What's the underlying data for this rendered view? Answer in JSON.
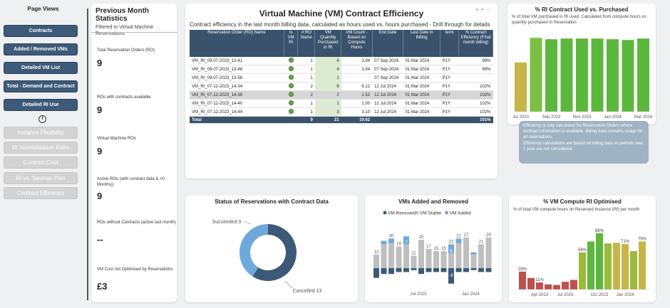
{
  "nav": {
    "title": "Page Views",
    "buttons": [
      "Contracts",
      "Added / Removed VMs",
      "Detailed VM List",
      "Total - Demand and Contract",
      "Detailed RI Use"
    ],
    "disabled_buttons": [
      "Instance Flexibility",
      "RI Normalisation Ratio",
      "Contract Cost",
      "RI vs. Savings Plan",
      "Contract Efficiency"
    ],
    "info_icon": "i"
  },
  "stats": {
    "title": "Previous Month Statistics",
    "subtitle": "Filtered to Virtual Machine Reservations",
    "items": [
      {
        "label": "Total Reservation Orders (RO)",
        "value": "9"
      },
      {
        "label": "ROs with contracts available",
        "value": "9"
      },
      {
        "label": "Virtual Machine ROs",
        "value": "9"
      },
      {
        "label": "Active ROs (with contract data & >0 Months))",
        "value": "9"
      },
      {
        "label": "ROs without Contracts (active last month)",
        "value": "--"
      },
      {
        "label": "VM Cost not Optimised by Reservations",
        "value": "£3"
      }
    ]
  },
  "table": {
    "title": "Virtual Machine (VM) Contract Efficiency",
    "subtitle": "Contract efficiency in the last month billing data, calculated as hours used vs. hours purchased - Drill through for details",
    "headers": [
      "Reservation Order (RO) Name",
      "Is VM RI",
      "# RO Name",
      "VM Quantity Purchased in RI",
      "VM Count - Based on Compute Hours",
      "End Date",
      "Last Date in Billing",
      "term",
      "% Contract Efficiency (Final month billing)"
    ],
    "rows": [
      [
        "VM_RI_09-07-2023_13-41",
        "",
        "1",
        "4",
        "3.94",
        "07 Sep 2024",
        "01 Mar 2024",
        "P1Y",
        "99%"
      ],
      [
        "VM_RI_09-07-2023_13-48",
        "",
        "1",
        "4",
        "3.94",
        "07 Sep 2024",
        "01 Mar 2024",
        "P1Y",
        "99%"
      ],
      [
        "VM_RI_09-07-2023_13-58",
        "",
        "1",
        "1",
        "",
        "07 Sep 2024",
        "01 Mar 2024",
        "P1Y",
        ""
      ],
      [
        "VM_RI_07-12-2023_14-34",
        "",
        "2",
        "6",
        "6.12",
        "12 Jul 2024",
        "01 Mar 2024",
        "P1Y",
        "102%"
      ],
      [
        "VM_RI_07-12-2023_14-39",
        "",
        "2",
        "2",
        "1.52",
        "12 Jul 2024",
        "01 Mar 2024",
        "P1Y",
        "102%"
      ],
      [
        "VM_RI_07-12-2023_14-40",
        "",
        "1",
        "1",
        "1.00",
        "12 Jul 2024",
        "01 Mar 2024",
        "P1Y",
        "102%"
      ],
      [
        "VM_RI_07-12-2023_14-44",
        "",
        "1",
        "3",
        "3.10",
        "12 Jul 2024",
        "01 Mar 2024",
        "P1Y",
        "102%"
      ]
    ],
    "total": [
      "Total",
      "",
      "9",
      "21",
      "19.62",
      "",
      "",
      "",
      "101%"
    ]
  },
  "ri_used": {
    "title": "% RI Contract Used vs. Purchased",
    "subtitle": "% of total VM purchased in RI used. Calculated from compute hours vs. quantity purchased in Reservation",
    "tooltip": [
      "Efficiency is only calculated for Reservation Orders where contract information is available. Billing data contains usage for all reservations.",
      "Efficiency calculations are based on billing data so periods over 1 year are not considered."
    ]
  },
  "donut": {
    "title": "Status of Reservations with Contract Data",
    "label_succeeded": "Succeeded 9",
    "label_cancelled": "Cancelled 13"
  },
  "vms": {
    "title": "VMs Added and Removed",
    "legend": [
      "VM Removed",
      "VM Stable",
      "VM Added"
    ]
  },
  "optimised": {
    "title": "% VM Compute RI Optimised",
    "subtitle": "% of total VM compute hours on Reserved Instance (RI) per month"
  },
  "chart_data": [
    {
      "type": "bar",
      "title": "% RI Contract Used vs. Purchased",
      "categories": [
        "Jul 2023",
        "Aug 2023",
        "Sep 2023",
        "Oct 2023",
        "Nov 2023",
        "Dec 2023",
        "Jan 2024",
        "Feb 2024",
        "Mar 2024"
      ],
      "x_ticks": [
        "Jul 2023",
        "Sep 2023",
        "Nov 2023",
        "Jan 2024",
        "Mar 2024"
      ],
      "values": [
        68,
        102,
        100,
        101,
        101,
        101,
        100,
        99,
        101
      ],
      "colors": [
        "#c7b54a",
        "#7bc043",
        "#5cb83c",
        "#5cb83c",
        "#5cb83c",
        "#5cb83c",
        "#5cb83c",
        "#5cb83c",
        "#5cb83c"
      ]
    },
    {
      "type": "pie",
      "title": "Status of Reservations with Contract Data",
      "categories": [
        "Succeeded",
        "Cancelled"
      ],
      "values": [
        9,
        13
      ],
      "colors": [
        "#6fa8dc",
        "#3c5a78"
      ]
    },
    {
      "type": "bar",
      "title": "VMs Added and Removed",
      "x_ticks": [
        "Jul 2023",
        "Jan 2024"
      ],
      "series": [
        {
          "name": "VM Stable",
          "values": [
            12,
            21,
            22,
            19,
            21,
            11,
            25,
            17,
            15,
            15,
            13,
            22,
            27,
            12,
            21,
            27
          ]
        },
        {
          "name": "VM Added",
          "values": [
            0,
            3,
            4,
            0,
            7,
            0,
            0,
            0,
            0,
            0,
            8,
            4,
            0,
            2,
            0,
            0
          ]
        },
        {
          "name": "VM Removed",
          "values": [
            -5,
            -3,
            -3,
            -2,
            -2,
            -1,
            -3,
            -2,
            -2,
            -2,
            -8,
            -2,
            -2,
            -1,
            -2,
            -2
          ]
        },
        {
          "name": "Total",
          "values": [
            12,
            21,
            30,
            19,
            28,
            11,
            25,
            17,
            15,
            15,
            22,
            22,
            27,
            14,
            21,
            29
          ]
        }
      ],
      "value_labels": [
        "12",
        "",
        "30",
        "19",
        "",
        "11",
        "25",
        "17",
        "15",
        "15",
        "22",
        "22",
        "27",
        "",
        "21",
        "29"
      ],
      "inner_labels": [
        "",
        "",
        "",
        "",
        "7",
        "",
        "",
        "",
        "",
        "",
        "8",
        "",
        "",
        "",
        "",
        ""
      ],
      "removed_labels": [
        "",
        "",
        "",
        "",
        "",
        "",
        "",
        "",
        "",
        "",
        "-8",
        "",
        "",
        "",
        "",
        ""
      ],
      "top_labels_extra": [
        {
          "i": 0,
          "text": "12"
        },
        {
          "i": 1,
          "text": "21"
        }
      ]
    },
    {
      "type": "bar",
      "title": "% VM Compute RI Optimised",
      "x_ticks": [
        "Apr 2023",
        "Jul 2023",
        "Oct 2023",
        "Jan 2024"
      ],
      "values": [
        28,
        18,
        11,
        8,
        7,
        12,
        15,
        58,
        75,
        88,
        72,
        73,
        71,
        60,
        75
      ],
      "value_labels": [
        "28%",
        "",
        "11%",
        "",
        "",
        "",
        "",
        "58%",
        "",
        "88%",
        "",
        "",
        "71%",
        "",
        "75%"
      ],
      "colors": [
        "#c0504d",
        "#c0504d",
        "#c0504d",
        "#c0504d",
        "#c0504d",
        "#c0504d",
        "#c0504d",
        "#9bbb3b",
        "#5cb83c",
        "#5cb83c",
        "#9bbb3b",
        "#c7b54a",
        "#c7b54a",
        "#9bbb3b",
        "#c7b54a"
      ],
      "ylim": [
        0,
        100
      ]
    }
  ]
}
